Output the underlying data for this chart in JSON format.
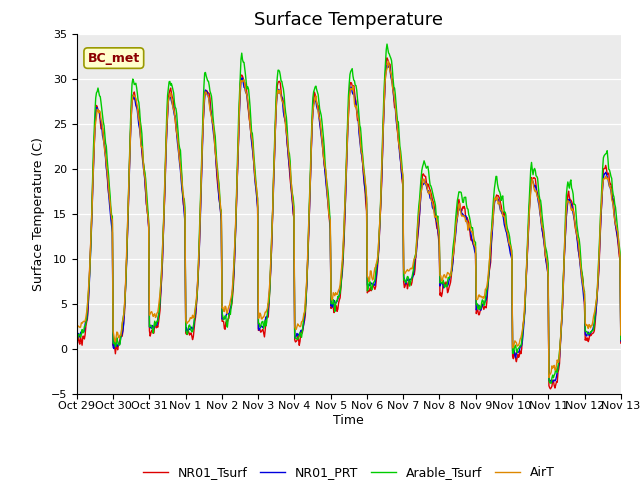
{
  "title": "Surface Temperature",
  "ylabel": "Surface Temperature (C)",
  "xlabel": "Time",
  "annotation": "BC_met",
  "ylim": [
    -5,
    35
  ],
  "yticks": [
    -5,
    0,
    5,
    10,
    15,
    20,
    25,
    30,
    35
  ],
  "xtick_labels": [
    "Oct 29",
    "Oct 30",
    "Oct 31",
    "Nov 1",
    "Nov 2",
    "Nov 3",
    "Nov 4",
    "Nov 5",
    "Nov 6",
    "Nov 7",
    "Nov 8",
    "Nov 9",
    "Nov 10",
    "Nov 11",
    "Nov 12",
    "Nov 13"
  ],
  "series_colors": {
    "NR01_Tsurf": "#dd0000",
    "NR01_PRT": "#0000dd",
    "Arable_Tsurf": "#00cc00",
    "AirT": "#dd8800"
  },
  "background_color": "#ebebeb",
  "title_fontsize": 13,
  "axis_fontsize": 9,
  "tick_fontsize": 8,
  "legend_fontsize": 9
}
